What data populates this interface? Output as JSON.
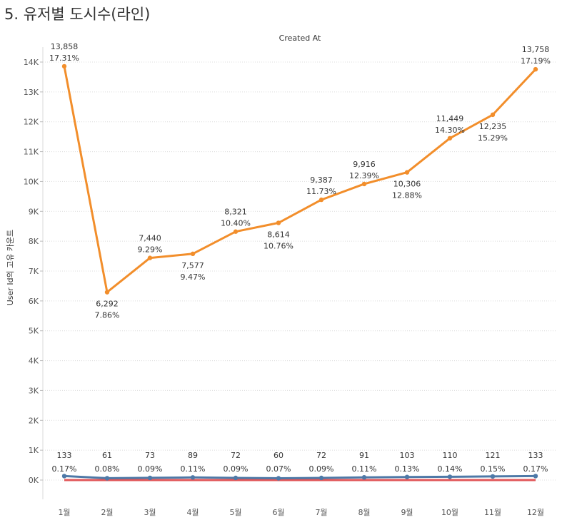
{
  "page_title": "5. 유저별 도시수(라인)",
  "chart_data": {
    "type": "line",
    "title": "Created At",
    "xlabel": "",
    "ylabel": "User Id의 고유 카운트",
    "categories": [
      "1월",
      "2월",
      "3월",
      "4월",
      "5월",
      "6월",
      "7월",
      "8월",
      "9월",
      "10월",
      "11월",
      "12월"
    ],
    "ylim": [
      0,
      14000
    ],
    "yticks": [
      0,
      1000,
      2000,
      3000,
      4000,
      5000,
      6000,
      7000,
      8000,
      9000,
      10000,
      11000,
      12000,
      13000,
      14000
    ],
    "ytick_labels": [
      "0K",
      "1K",
      "2K",
      "3K",
      "4K",
      "5K",
      "6K",
      "7K",
      "8K",
      "9K",
      "10K",
      "11K",
      "12K",
      "13K",
      "14K"
    ],
    "grid": "horizontal dotted",
    "series": [
      {
        "name": "orange",
        "color": "#f28e2b",
        "values": [
          13858,
          6292,
          7440,
          7577,
          8321,
          8614,
          9387,
          9916,
          10306,
          11449,
          12235,
          13758
        ],
        "value_labels": [
          "13,858",
          "6,292",
          "7,440",
          "7,577",
          "8,321",
          "8,614",
          "9,387",
          "9,916",
          "10,306",
          "11,449",
          "12,235",
          "13,758"
        ],
        "pct_labels": [
          "17.31%",
          "7.86%",
          "9.29%",
          "9.47%",
          "10.40%",
          "10.76%",
          "11.73%",
          "12.39%",
          "12.88%",
          "14.30%",
          "15.29%",
          "17.19%"
        ],
        "label_pos": [
          "above",
          "below",
          "above",
          "below",
          "above",
          "below",
          "above",
          "above",
          "below",
          "above",
          "below",
          "above"
        ]
      },
      {
        "name": "blue",
        "color": "#4e79a7",
        "values": [
          133,
          61,
          73,
          89,
          72,
          60,
          72,
          91,
          103,
          110,
          121,
          133
        ],
        "value_labels": [
          "133",
          "61",
          "73",
          "89",
          "72",
          "60",
          "72",
          "91",
          "103",
          "110",
          "121",
          "133"
        ],
        "pct_labels": [
          "0.17%",
          "0.08%",
          "0.09%",
          "0.11%",
          "0.09%",
          "0.07%",
          "0.09%",
          "0.11%",
          "0.13%",
          "0.14%",
          "0.15%",
          "0.17%"
        ],
        "label_pos": [
          "above",
          "above",
          "above",
          "above",
          "above",
          "above",
          "above",
          "above",
          "above",
          "above",
          "above",
          "above"
        ]
      },
      {
        "name": "red",
        "color": "#e15759",
        "values": [
          0,
          0,
          0,
          0,
          0,
          0,
          0,
          0,
          0,
          0,
          0,
          0
        ],
        "value_labels": [],
        "pct_labels": [],
        "label_pos": []
      }
    ]
  }
}
